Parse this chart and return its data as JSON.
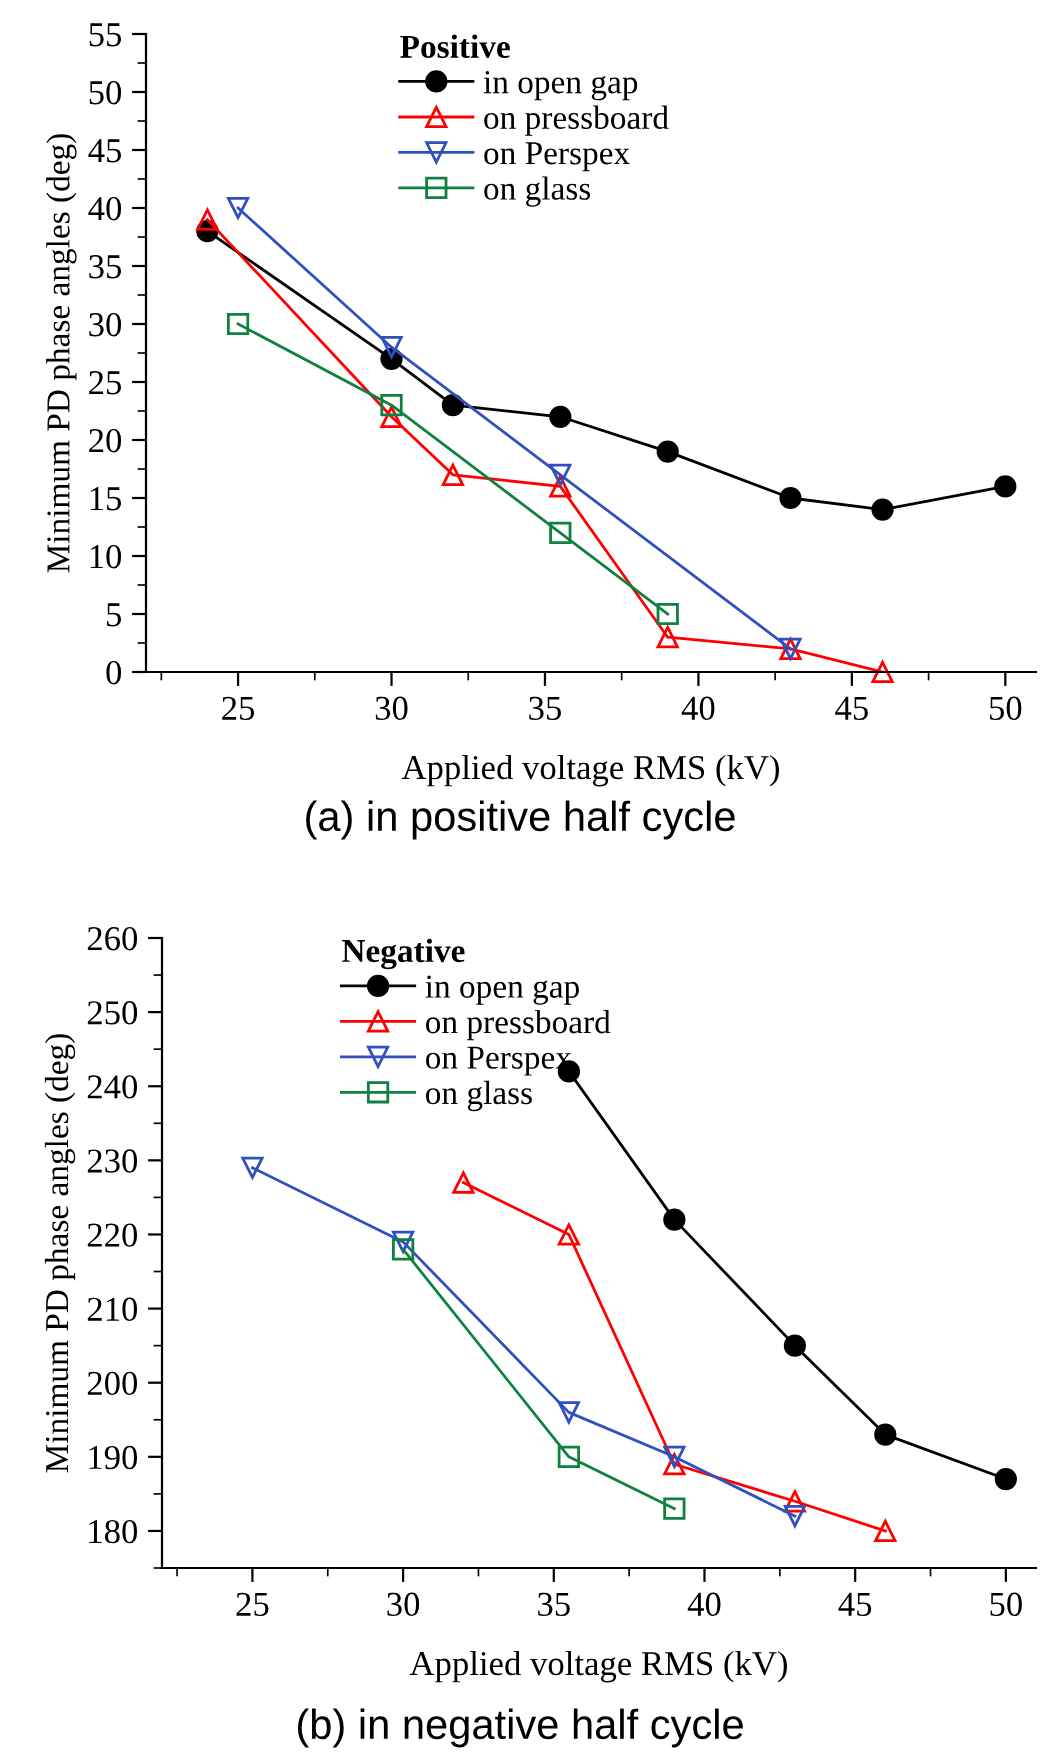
{
  "chart_data": [
    {
      "type": "line",
      "title": "(a) in positive half cycle",
      "xlabel": "Applied voltage RMS (kV)",
      "ylabel": "Minimum PD phase angles (deg)",
      "legend_title": "Positive",
      "legend": "top left",
      "grid": false,
      "xlim": [
        22,
        51
      ],
      "xticks": [
        25,
        30,
        35,
        40,
        45,
        50
      ],
      "ylim": [
        0,
        55
      ],
      "yticks": [
        0,
        5,
        10,
        15,
        20,
        25,
        30,
        35,
        40,
        45,
        50,
        55
      ],
      "series": [
        {
          "name": "in open gap",
          "color": "#000000",
          "marker": "circle",
          "x": [
            24,
            30,
            32,
            35.5,
            39,
            43,
            46,
            50
          ],
          "values": [
            38,
            27,
            23,
            22,
            19,
            15,
            14,
            16
          ]
        },
        {
          "name": "on pressboard",
          "color": "#ff0000",
          "marker": "triangle",
          "x": [
            24,
            30,
            32,
            35.5,
            39,
            43,
            46
          ],
          "values": [
            39,
            22,
            17,
            16,
            3,
            2,
            0
          ]
        },
        {
          "name": "on Perspex",
          "color": "#3050c0",
          "marker": "triangle_down",
          "x": [
            25,
            30,
            35.5,
            43
          ],
          "values": [
            40,
            28,
            17,
            2
          ]
        },
        {
          "name": "on glass",
          "color": "#108040",
          "marker": "square",
          "x": [
            25,
            30,
            35.5,
            39
          ],
          "values": [
            30,
            23,
            12,
            5
          ]
        }
      ]
    },
    {
      "type": "line",
      "title": "(b) in negative half cycle",
      "xlabel": "Applied voltage RMS (kV)",
      "ylabel": "Minimum PD phase angles (deg)",
      "legend_title": "Negative",
      "legend": "top left",
      "grid": false,
      "xlim": [
        22,
        51
      ],
      "xticks": [
        25,
        30,
        35,
        40,
        45,
        50
      ],
      "ylim": [
        175,
        260
      ],
      "yticks": [
        180,
        190,
        200,
        210,
        220,
        230,
        240,
        250,
        260
      ],
      "series": [
        {
          "name": "in open gap",
          "color": "#000000",
          "marker": "circle",
          "x": [
            35.5,
            39,
            43,
            46,
            50
          ],
          "values": [
            242,
            222,
            205,
            193,
            187
          ]
        },
        {
          "name": "on pressboard",
          "color": "#ff0000",
          "marker": "triangle",
          "x": [
            32,
            35.5,
            39,
            43,
            46
          ],
          "values": [
            227,
            220,
            189,
            184,
            180
          ]
        },
        {
          "name": "on Perspex",
          "color": "#3050c0",
          "marker": "triangle_down",
          "x": [
            25,
            30,
            35.5,
            39,
            43
          ],
          "values": [
            229,
            219,
            196,
            190,
            182
          ]
        },
        {
          "name": "on glass",
          "color": "#108040",
          "marker": "square",
          "x": [
            30,
            35.5,
            39
          ],
          "values": [
            218,
            190,
            183
          ]
        }
      ]
    }
  ]
}
